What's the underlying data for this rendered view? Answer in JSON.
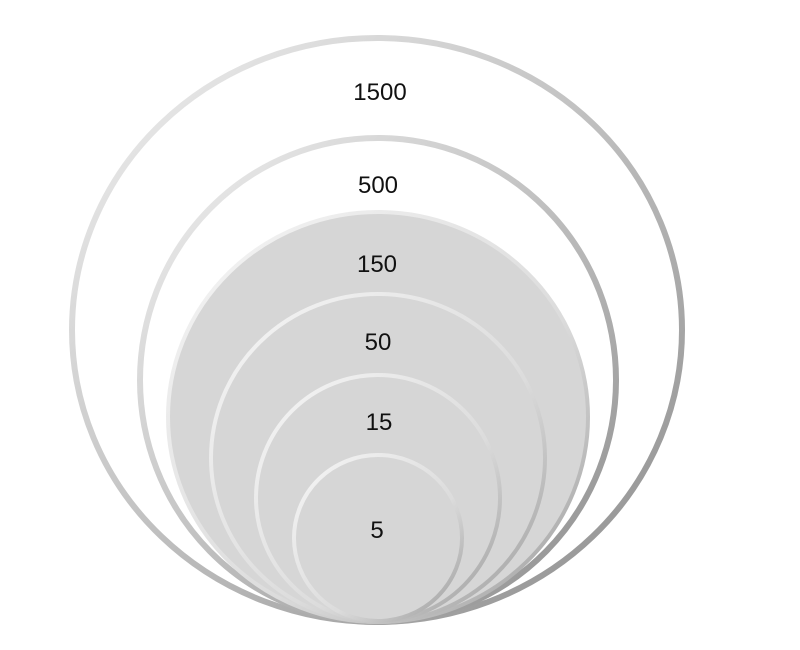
{
  "diagram": {
    "rings": [
      {
        "label": "1500",
        "filled": false
      },
      {
        "label": "500",
        "filled": false
      },
      {
        "label": "150",
        "filled": true
      },
      {
        "label": "50",
        "filled": true
      },
      {
        "label": "15",
        "filled": true
      },
      {
        "label": "5",
        "filled": true
      }
    ],
    "colors": {
      "fill": "#d6d6d6",
      "rim_dark": "#8c8c8c",
      "rim_light": "#f2f2f2",
      "background": "#ffffff",
      "text": "#111111"
    }
  }
}
